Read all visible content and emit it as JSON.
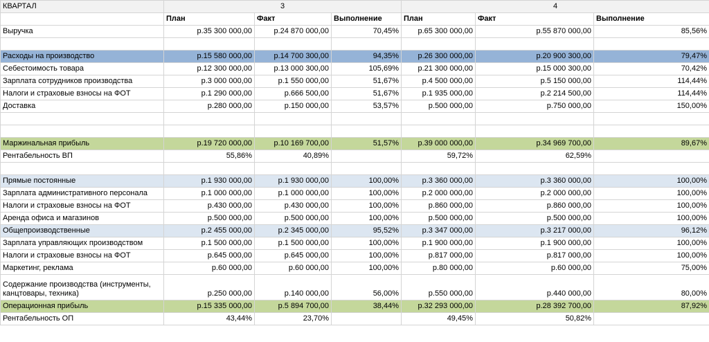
{
  "header": {
    "title": "КВАРТАЛ",
    "q3": "3",
    "q4": "4",
    "plan": "План",
    "fact": "Факт",
    "done": "Выполнение"
  },
  "rows": [
    {
      "key": "revenue",
      "label": "Выручка",
      "style": "",
      "q3": [
        "р.35 300 000,00",
        "р.24 870 000,00",
        "70,45%"
      ],
      "q4": [
        "р.65 300 000,00",
        "р.55 870 000,00",
        "85,56%"
      ]
    },
    {
      "key": "blank1",
      "label": "",
      "style": "",
      "q3": [
        "",
        "",
        ""
      ],
      "q4": [
        "",
        "",
        ""
      ]
    },
    {
      "key": "prod-costs",
      "label": "Расходы на производство",
      "style": "blue",
      "q3": [
        "р.15 580 000,00",
        "р.14 700 300,00",
        "94,35%"
      ],
      "q4": [
        "р.26 300 000,00",
        "р.20 900 300,00",
        "79,47%"
      ]
    },
    {
      "key": "cogs",
      "label": "Себестоимость товара",
      "style": "",
      "q3": [
        "р.12 300 000,00",
        "р.13 000 300,00",
        "105,69%"
      ],
      "q4": [
        "р.21 300 000,00",
        "р.15 000 300,00",
        "70,42%"
      ]
    },
    {
      "key": "prod-salary",
      "label": "Зарплата сотрудников производства",
      "style": "",
      "q3": [
        "р.3 000 000,00",
        "р.1 550 000,00",
        "51,67%"
      ],
      "q4": [
        "р.4 500 000,00",
        "р.5 150 000,00",
        "114,44%"
      ]
    },
    {
      "key": "prod-taxes",
      "label": "Налоги и страховые взносы на ФОТ",
      "style": "",
      "q3": [
        "р.1 290 000,00",
        "р.666 500,00",
        "51,67%"
      ],
      "q4": [
        "р.1 935 000,00",
        "р.2 214 500,00",
        "114,44%"
      ]
    },
    {
      "key": "delivery",
      "label": "Доставка",
      "style": "",
      "q3": [
        "р.280 000,00",
        "р.150 000,00",
        "53,57%"
      ],
      "q4": [
        "р.500 000,00",
        "р.750 000,00",
        "150,00%"
      ]
    },
    {
      "key": "blank2",
      "label": "",
      "style": "",
      "q3": [
        "",
        "",
        ""
      ],
      "q4": [
        "",
        "",
        ""
      ]
    },
    {
      "key": "blank3",
      "label": "",
      "style": "",
      "q3": [
        "",
        "",
        ""
      ],
      "q4": [
        "",
        "",
        ""
      ]
    },
    {
      "key": "margin",
      "label": "Маржинальная прибыль",
      "style": "green",
      "q3": [
        "р.19 720 000,00",
        "р.10 169 700,00",
        "51,57%"
      ],
      "q4": [
        "р.39 000 000,00",
        "р.34 969 700,00",
        "89,67%"
      ]
    },
    {
      "key": "gp-profit",
      "label": "Рентабельность ВП",
      "style": "",
      "q3": [
        "55,86%",
        "40,89%",
        ""
      ],
      "q4": [
        "59,72%",
        "62,59%",
        ""
      ]
    },
    {
      "key": "blank4",
      "label": "",
      "style": "",
      "q3": [
        "",
        "",
        ""
      ],
      "q4": [
        "",
        "",
        ""
      ]
    },
    {
      "key": "direct-fixed",
      "label": "Прямые постоянные",
      "style": "lblue",
      "q3": [
        "р.1 930 000,00",
        "р.1 930 000,00",
        "100,00%"
      ],
      "q4": [
        "р.3 360 000,00",
        "р.3 360 000,00",
        "100,00%"
      ]
    },
    {
      "key": "admin-salary",
      "label": "Зарплата административного персонала",
      "style": "",
      "q3": [
        "р.1 000 000,00",
        "р.1 000 000,00",
        "100,00%"
      ],
      "q4": [
        "р.2 000 000,00",
        "р.2 000 000,00",
        "100,00%"
      ]
    },
    {
      "key": "admin-taxes",
      "label": "Налоги и страховые взносы на ФОТ",
      "style": "",
      "q3": [
        "р.430 000,00",
        "р.430 000,00",
        "100,00%"
      ],
      "q4": [
        "р.860 000,00",
        "р.860 000,00",
        "100,00%"
      ]
    },
    {
      "key": "rent",
      "label": "Аренда офиса и магазинов",
      "style": "",
      "q3": [
        "р.500 000,00",
        "р.500 000,00",
        "100,00%"
      ],
      "q4": [
        "р.500 000,00",
        "р.500 000,00",
        "100,00%"
      ]
    },
    {
      "key": "overhead",
      "label": "Общепроизводственные",
      "style": "lblue",
      "q3": [
        "р.2 455 000,00",
        "р.2 345 000,00",
        "95,52%"
      ],
      "q4": [
        "р.3 347 000,00",
        "р.3 217 000,00",
        "96,12%"
      ]
    },
    {
      "key": "mgmt-salary",
      "label": "Зарплата управляющих производством",
      "style": "",
      "q3": [
        "р.1 500 000,00",
        "р.1 500 000,00",
        "100,00%"
      ],
      "q4": [
        "р.1 900 000,00",
        "р.1 900 000,00",
        "100,00%"
      ]
    },
    {
      "key": "mgmt-taxes",
      "label": "Налоги и страховые взносы на ФОТ",
      "style": "",
      "q3": [
        "р.645 000,00",
        "р.645 000,00",
        "100,00%"
      ],
      "q4": [
        "р.817 000,00",
        "р.817 000,00",
        "100,00%"
      ]
    },
    {
      "key": "marketing",
      "label": "Маркетинг, реклама",
      "style": "",
      "q3": [
        "р.60 000,00",
        "р.60 000,00",
        "100,00%"
      ],
      "q4": [
        "р.80 000,00",
        "р.60 000,00",
        "75,00%"
      ]
    },
    {
      "key": "maintenance",
      "label": "Содержание производства (инструменты, канцтовары, техника)",
      "style": "tall",
      "q3": [
        "р.250 000,00",
        "р.140 000,00",
        "56,00%"
      ],
      "q4": [
        "р.550 000,00",
        "р.440 000,00",
        "80,00%"
      ]
    },
    {
      "key": "op-profit",
      "label": "Операционная прибыль",
      "style": "green",
      "q3": [
        "р.15 335 000,00",
        "р.5 894 700,00",
        "38,44%"
      ],
      "q4": [
        "р.32 293 000,00",
        "р.28 392 700,00",
        "87,92%"
      ]
    },
    {
      "key": "op-margin",
      "label": "Рентабельность ОП",
      "style": "",
      "q3": [
        "43,44%",
        "23,70%",
        ""
      ],
      "q4": [
        "49,45%",
        "50,82%",
        ""
      ]
    }
  ]
}
